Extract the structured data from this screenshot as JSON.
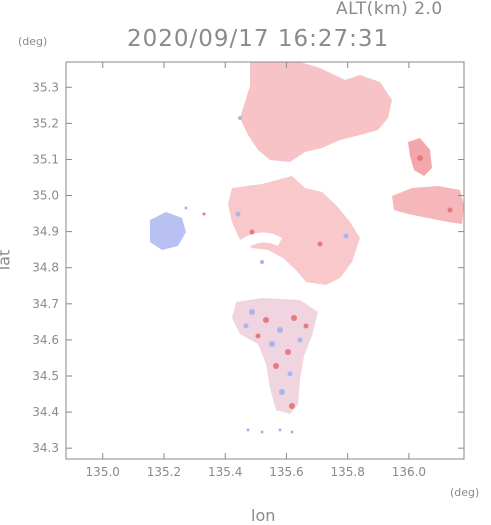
{
  "header": {
    "altitude_label": "ALT(km) 2.0",
    "timestamp": "2020/09/17 16:27:31"
  },
  "axes": {
    "y_unit": "(deg)",
    "x_unit": "(deg)",
    "y_title": "lat",
    "x_title": "lon",
    "lon_ticks": [
      "135.0",
      "135.2",
      "135.4",
      "135.6",
      "135.8",
      "136.0"
    ],
    "lat_ticks": [
      "35.3",
      "35.2",
      "35.1",
      "35.0",
      "34.9",
      "34.8",
      "34.7",
      "34.6",
      "34.5",
      "34.4",
      "34.3"
    ],
    "lon_range": [
      134.88,
      136.18
    ],
    "lat_range": [
      34.27,
      35.37
    ]
  },
  "colors": {
    "axis": "#8a8a8a",
    "positive": "#f4a9ad",
    "negative": "#aab4f0"
  }
}
